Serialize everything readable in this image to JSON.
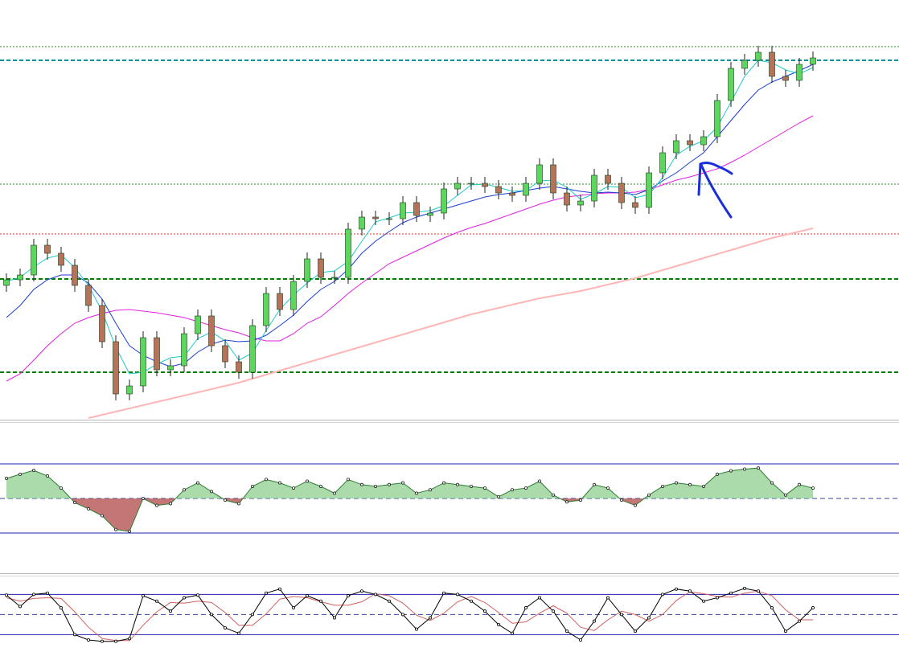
{
  "chart_data": [
    {
      "type": "candlestick",
      "ylim": [
        0,
        520
      ],
      "up_color": "#5cd65c",
      "down_color": "#b5735a",
      "open": [
        165,
        172,
        178,
        215,
        205,
        190,
        165,
        140,
        95,
        30,
        40,
        100,
        60,
        65,
        105,
        127,
        90,
        70,
        57,
        115,
        155,
        135,
        170,
        198,
        175,
        175,
        235,
        250,
        248,
        248,
        268,
        252,
        255,
        285,
        292,
        292,
        288,
        280,
        277,
        292,
        315,
        280,
        265,
        270,
        302,
        292,
        268,
        262,
        305,
        330,
        345,
        340,
        350,
        395,
        435,
        445,
        455,
        425,
        420,
        440
      ],
      "high": [
        180,
        186,
        223,
        223,
        213,
        198,
        173,
        148,
        103,
        48,
        108,
        108,
        73,
        113,
        135,
        135,
        98,
        78,
        123,
        163,
        163,
        178,
        206,
        206,
        183,
        243,
        258,
        258,
        256,
        276,
        276,
        263,
        293,
        300,
        300,
        300,
        296,
        288,
        300,
        323,
        323,
        288,
        278,
        310,
        310,
        300,
        276,
        313,
        338,
        353,
        353,
        358,
        403,
        443,
        453,
        463,
        463,
        433,
        448,
        456
      ],
      "low": [
        157,
        164,
        170,
        197,
        182,
        157,
        132,
        87,
        22,
        22,
        32,
        52,
        52,
        57,
        97,
        82,
        62,
        49,
        49,
        107,
        127,
        127,
        162,
        167,
        167,
        167,
        227,
        240,
        240,
        240,
        244,
        244,
        247,
        277,
        284,
        280,
        272,
        269,
        269,
        284,
        272,
        257,
        257,
        262,
        284,
        260,
        254,
        254,
        297,
        322,
        332,
        332,
        342,
        387,
        427,
        437,
        417,
        412,
        412,
        432
      ],
      "close": [
        172,
        178,
        215,
        205,
        190,
        165,
        140,
        95,
        30,
        40,
        100,
        60,
        65,
        105,
        127,
        90,
        70,
        57,
        115,
        155,
        135,
        170,
        198,
        175,
        175,
        235,
        250,
        248,
        248,
        268,
        252,
        255,
        285,
        292,
        292,
        288,
        280,
        277,
        292,
        315,
        280,
        265,
        270,
        302,
        292,
        268,
        262,
        305,
        330,
        345,
        340,
        350,
        395,
        435,
        445,
        455,
        425,
        420,
        440,
        448
      ],
      "series": [
        {
          "color": "#ffb6b6",
          "width": 2,
          "values": [
            null,
            null,
            null,
            null,
            null,
            null,
            0,
            4,
            8,
            12,
            16,
            20,
            24,
            28,
            32,
            36,
            40,
            44,
            49,
            54,
            59,
            64,
            69,
            74,
            79,
            84,
            89,
            94,
            99,
            104,
            109,
            114,
            119,
            124,
            129,
            133,
            137,
            141,
            145,
            149,
            152,
            155,
            158,
            162,
            166,
            170,
            174,
            179,
            184,
            189,
            194,
            199,
            204,
            209,
            214,
            219,
            224,
            228,
            232,
            236
          ]
        },
        {
          "color": "#e020e0",
          "width": 1,
          "values": [
            46,
            55,
            72,
            90,
            105,
            118,
            125,
            130,
            134,
            135,
            133,
            131,
            128,
            125,
            120,
            115,
            110,
            106,
            100,
            96,
            96,
            105,
            118,
            126,
            140,
            155,
            168,
            180,
            192,
            200,
            208,
            216,
            224,
            231,
            237,
            242,
            248,
            254,
            260,
            266,
            271,
            275,
            277,
            279,
            280,
            280,
            281,
            284,
            290,
            296,
            300,
            305,
            310,
            318,
            327,
            337,
            347,
            357,
            367,
            376
          ]
        },
        {
          "color": "#1a3fd0",
          "width": 1,
          "values": [
            125,
            140,
            160,
            172,
            178,
            178,
            168,
            148,
            118,
            90,
            78,
            70,
            64,
            68,
            82,
            92,
            97,
            95,
            96,
            103,
            115,
            128,
            145,
            160,
            170,
            185,
            205,
            220,
            232,
            243,
            250,
            255,
            260,
            265,
            270,
            275,
            278,
            280,
            283,
            286,
            288,
            285,
            282,
            280,
            281,
            280,
            278,
            284,
            295,
            305,
            318,
            330,
            350,
            370,
            390,
            408,
            418,
            425,
            432,
            440
          ]
        },
        {
          "color": "#20c8c8",
          "width": 1,
          "values": [
            170,
            175,
            188,
            199,
            203,
            187,
            165,
            133,
            88,
            55,
            57,
            67,
            75,
            77,
            99,
            107,
            96,
            72,
            81,
            109,
            135,
            153,
            168,
            181,
            183,
            195,
            220,
            244,
            249,
            255,
            256,
            258,
            264,
            277,
            290,
            291,
            287,
            282,
            283,
            295,
            296,
            287,
            272,
            279,
            288,
            287,
            274,
            278,
            299,
            327,
            338,
            345,
            362,
            393,
            425,
            445,
            442,
            433,
            428,
            436
          ]
        }
      ],
      "levels": [
        {
          "value": 462,
          "color": "#2e8b2e",
          "style": "dotted",
          "width": 1
        },
        {
          "value": 445,
          "color": "#1a8a9a",
          "style": "dashed",
          "width": 2
        },
        {
          "value": 291,
          "color": "#2e8b2e",
          "style": "dotted",
          "width": 1
        },
        {
          "value": 229,
          "color": "#e03030",
          "style": "dotted",
          "width": 1
        },
        {
          "value": 173,
          "color": "#0a7a0a",
          "style": "dashed",
          "width": 2
        },
        {
          "value": 57,
          "color": "#0a7a0a",
          "style": "dashed",
          "width": 2
        }
      ]
    },
    {
      "type": "area",
      "ylim": [
        -150,
        150
      ],
      "color": "#2e7d32",
      "fill": "#8fcf8f",
      "negative_fill": "#b04848",
      "values": [
        58,
        70,
        81,
        65,
        30,
        -12,
        -30,
        -50,
        -90,
        -95,
        0,
        -20,
        -15,
        25,
        45,
        20,
        -5,
        -15,
        35,
        55,
        45,
        30,
        50,
        35,
        15,
        55,
        40,
        35,
        40,
        45,
        15,
        25,
        45,
        40,
        35,
        30,
        5,
        25,
        30,
        50,
        10,
        -10,
        -5,
        40,
        30,
        -5,
        -20,
        10,
        35,
        45,
        40,
        35,
        70,
        80,
        85,
        88,
        45,
        10,
        40,
        30
      ],
      "levels": [
        {
          "value": 100,
          "color": "#2020b0",
          "style": "solid",
          "width": 1
        },
        {
          "value": 0,
          "color": "#3040a0",
          "style": "dashed",
          "width": 1
        },
        {
          "value": -100,
          "color": "#2020b0",
          "style": "solid",
          "width": 1
        }
      ]
    },
    {
      "type": "line",
      "ylim": [
        0,
        100
      ],
      "series": [
        {
          "color": "#d06060",
          "width": 1,
          "values": [
            75,
            70,
            74,
            75,
            74,
            54,
            31,
            14,
            11,
            11,
            34,
            54,
            68,
            67,
            70,
            68,
            53,
            34,
            34,
            51,
            73,
            77,
            75,
            69,
            64,
            64,
            69,
            81,
            78,
            67,
            49,
            41,
            52,
            69,
            77,
            68,
            53,
            37,
            39,
            52,
            63,
            52,
            31,
            26,
            42,
            55,
            50,
            40,
            50,
            71,
            84,
            81,
            77,
            76,
            82,
            85,
            78,
            57,
            42,
            42
          ]
        },
        {
          "color": "#000000",
          "width": 1,
          "markers": true,
          "values": [
            79,
            62,
            80,
            82,
            60,
            20,
            12,
            10,
            10,
            14,
            78,
            70,
            55,
            75,
            79,
            50,
            30,
            22,
            50,
            82,
            88,
            60,
            78,
            70,
            45,
            78,
            85,
            80,
            70,
            50,
            28,
            45,
            82,
            80,
            70,
            55,
            35,
            22,
            60,
            75,
            55,
            25,
            12,
            40,
            75,
            50,
            25,
            45,
            80,
            88,
            85,
            70,
            75,
            82,
            89,
            85,
            60,
            25,
            40,
            60
          ]
        }
      ],
      "levels": [
        {
          "value": 80,
          "color": "#2020b0",
          "style": "solid",
          "width": 1
        },
        {
          "value": 50,
          "color": "#3040a0",
          "style": "dashed",
          "width": 1
        },
        {
          "value": 20,
          "color": "#2020b0",
          "style": "solid",
          "width": 1
        }
      ]
    }
  ]
}
